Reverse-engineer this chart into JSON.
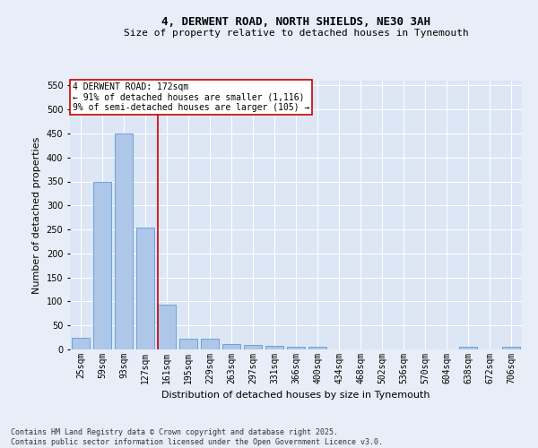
{
  "title_line1": "4, DERWENT ROAD, NORTH SHIELDS, NE30 3AH",
  "title_line2": "Size of property relative to detached houses in Tynemouth",
  "xlabel": "Distribution of detached houses by size in Tynemouth",
  "ylabel": "Number of detached properties",
  "categories": [
    "25sqm",
    "59sqm",
    "93sqm",
    "127sqm",
    "161sqm",
    "195sqm",
    "229sqm",
    "263sqm",
    "297sqm",
    "331sqm",
    "366sqm",
    "400sqm",
    "434sqm",
    "468sqm",
    "502sqm",
    "536sqm",
    "570sqm",
    "604sqm",
    "638sqm",
    "672sqm",
    "706sqm"
  ],
  "values": [
    25,
    350,
    450,
    253,
    93,
    22,
    22,
    12,
    10,
    8,
    5,
    5,
    0,
    0,
    0,
    0,
    0,
    0,
    5,
    0,
    5
  ],
  "bar_color": "#aec6e8",
  "bar_edge_color": "#5b9bd5",
  "ref_line_index": 4,
  "ref_line_color": "#cc0000",
  "ylim": [
    0,
    560
  ],
  "yticks": [
    0,
    50,
    100,
    150,
    200,
    250,
    300,
    350,
    400,
    450,
    500,
    550
  ],
  "annotation_text": "4 DERWENT ROAD: 172sqm\n← 91% of detached houses are smaller (1,116)\n9% of semi-detached houses are larger (105) →",
  "annotation_box_color": "#ffffff",
  "annotation_box_edge": "#cc0000",
  "footer_line1": "Contains HM Land Registry data © Crown copyright and database right 2025.",
  "footer_line2": "Contains public sector information licensed under the Open Government Licence v3.0.",
  "background_color": "#e8eef7",
  "plot_bg_color": "#dce6f5",
  "title_fontsize": 9,
  "subtitle_fontsize": 8,
  "ylabel_fontsize": 8,
  "xlabel_fontsize": 8,
  "tick_fontsize": 7,
  "footer_fontsize": 6
}
